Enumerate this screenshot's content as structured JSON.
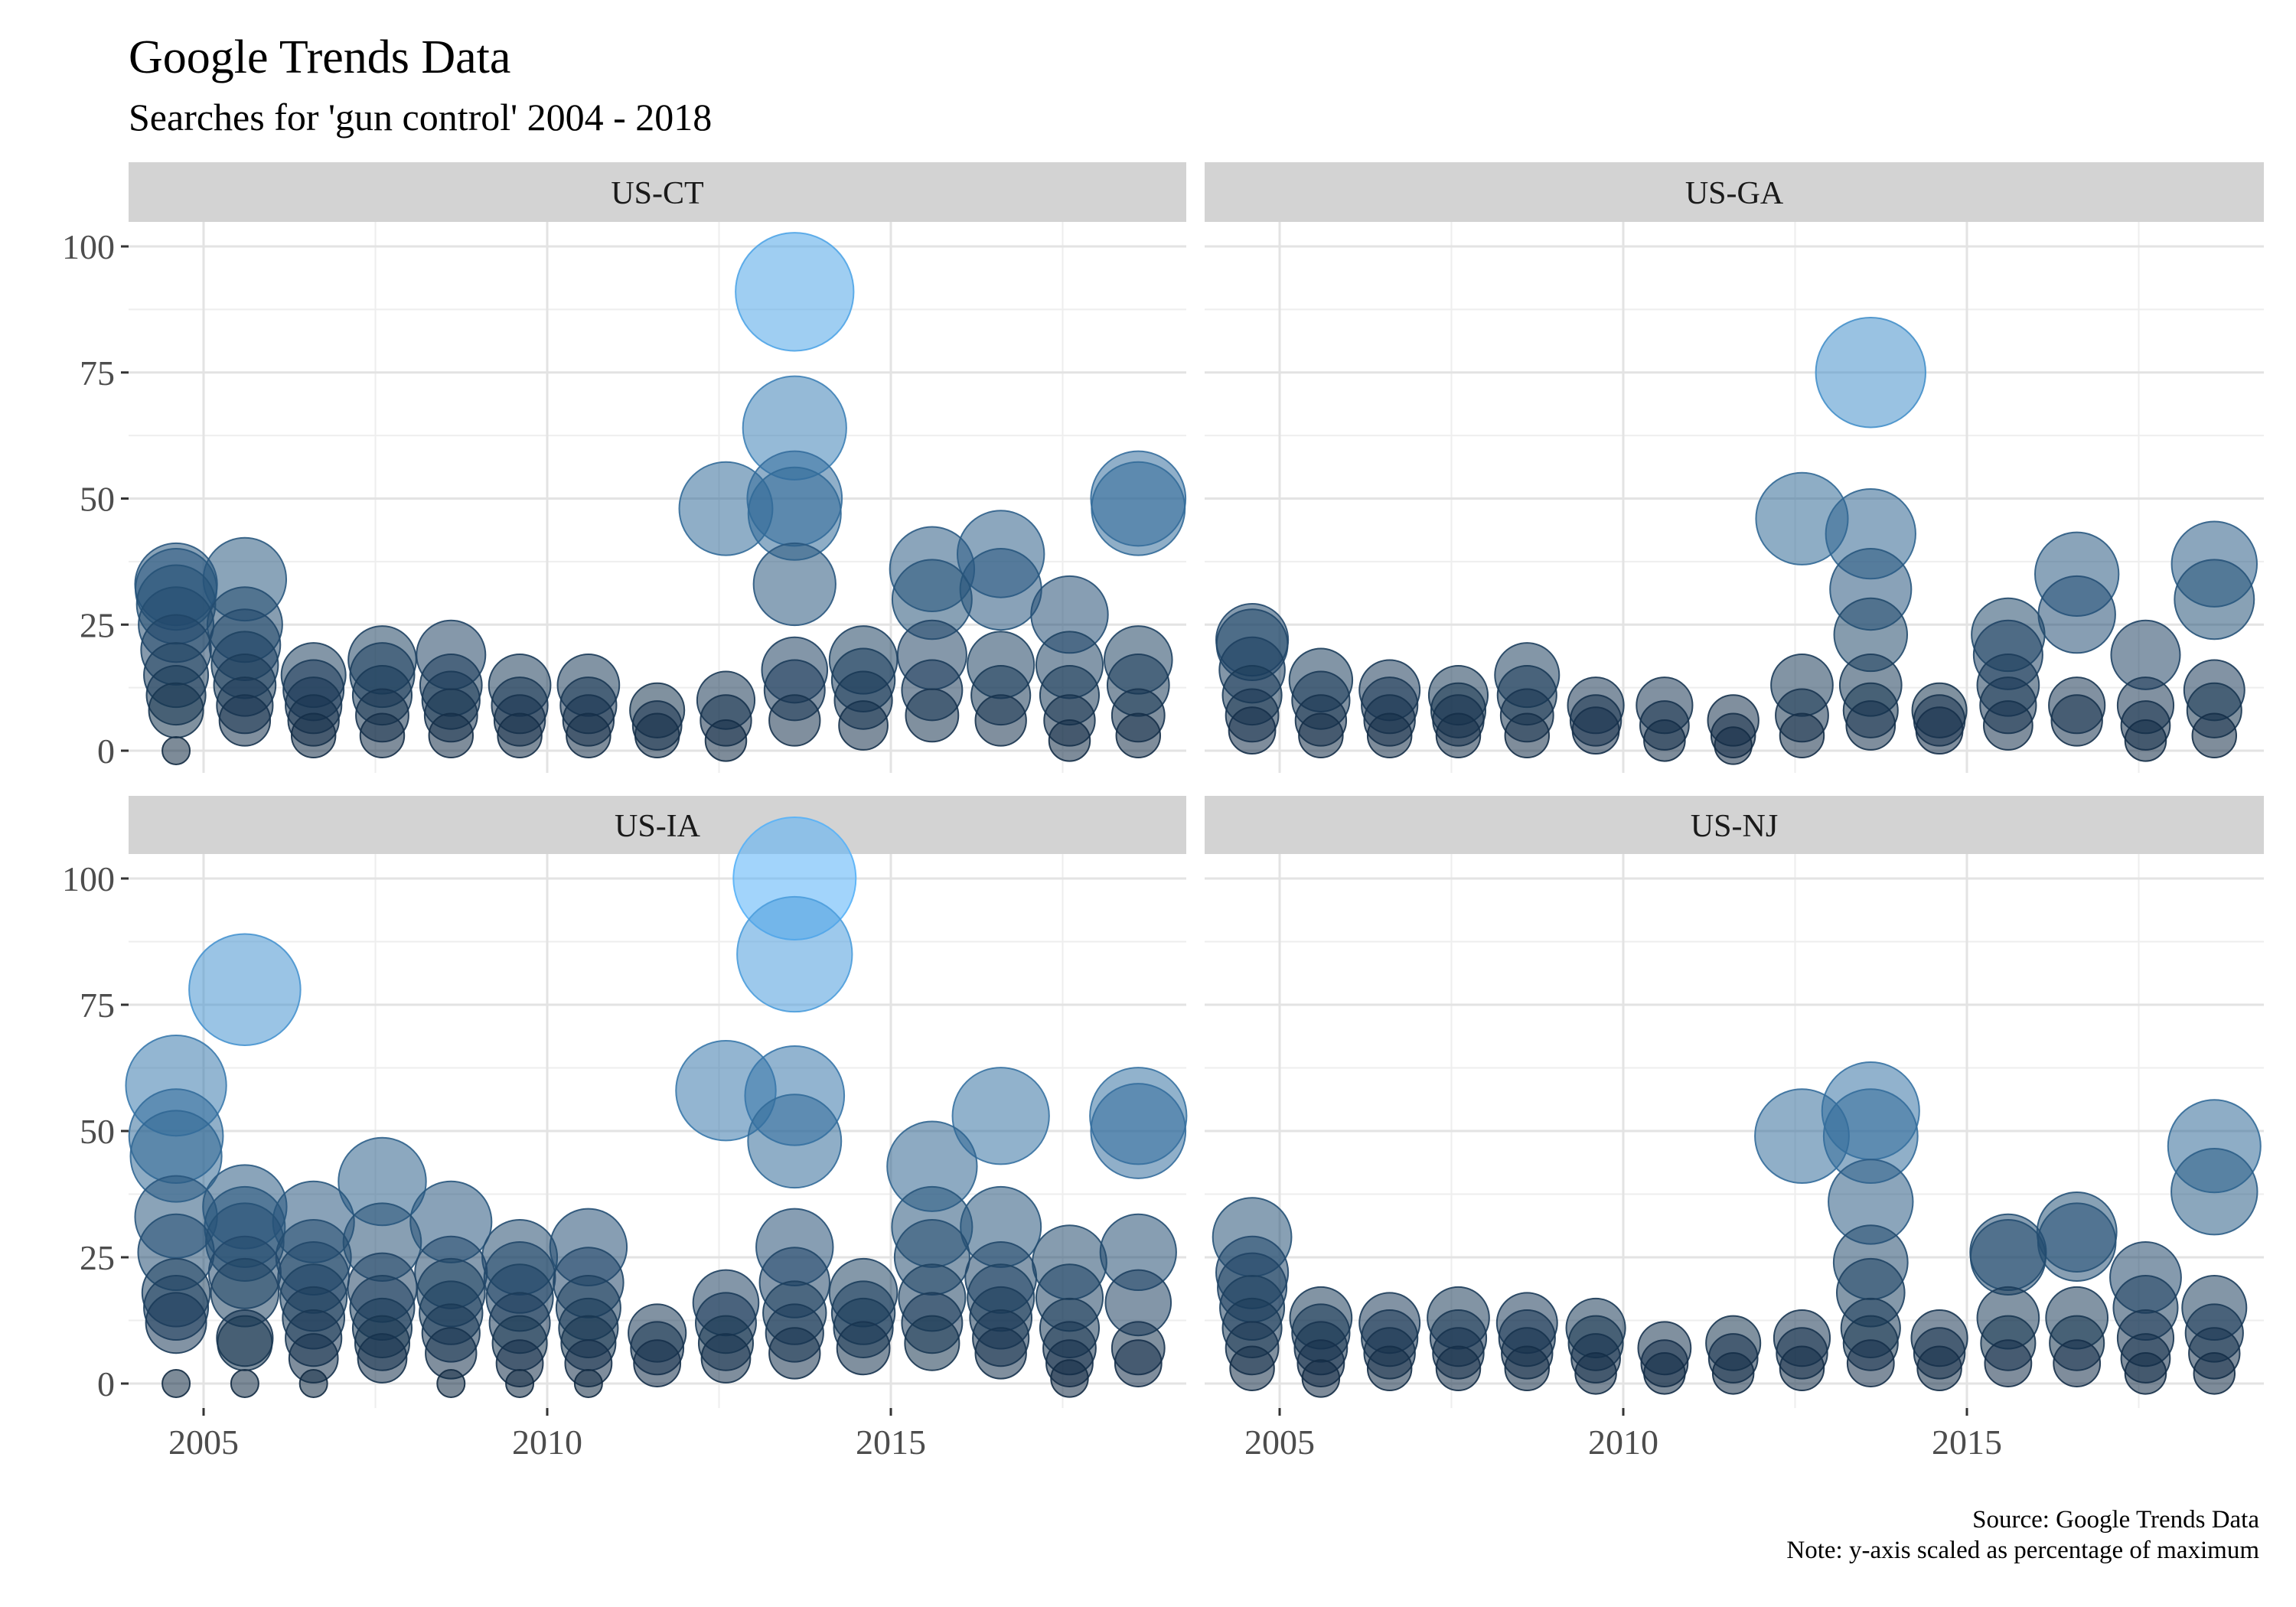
{
  "title": "Google Trends Data",
  "subtitle": "Searches for 'gun control' 2004 - 2018",
  "caption": {
    "line1": "Source: Google Trends Data",
    "line2": "Note: y-axis scaled as percentage of maximum"
  },
  "colors": {
    "low": "#132b43",
    "high": "#56b1f7",
    "strip": "#d3d3d3",
    "grid": "#e3e3e3"
  },
  "chart_data": {
    "type": "scatter",
    "x_ticks": [
      2005,
      2010,
      2015
    ],
    "y_ticks": [
      0,
      25,
      50,
      75,
      100
    ],
    "xlim": [
      2004.0,
      2019.0
    ],
    "ylim": [
      -5,
      105
    ],
    "size_and_color_encode": "y",
    "facets": [
      {
        "label": "US-CT",
        "points": [
          [
            2004.6,
            0
          ],
          [
            2004.6,
            8
          ],
          [
            2004.6,
            11
          ],
          [
            2004.6,
            15
          ],
          [
            2004.6,
            20
          ],
          [
            2004.6,
            25
          ],
          [
            2004.6,
            29
          ],
          [
            2004.6,
            32
          ],
          [
            2004.6,
            33
          ],
          [
            2005.6,
            6
          ],
          [
            2005.6,
            9
          ],
          [
            2005.6,
            13
          ],
          [
            2005.6,
            17
          ],
          [
            2005.6,
            21
          ],
          [
            2005.6,
            25
          ],
          [
            2005.6,
            34
          ],
          [
            2006.6,
            3
          ],
          [
            2006.6,
            6
          ],
          [
            2006.6,
            9
          ],
          [
            2006.6,
            12
          ],
          [
            2006.6,
            15
          ],
          [
            2007.6,
            3
          ],
          [
            2007.6,
            7
          ],
          [
            2007.6,
            11
          ],
          [
            2007.6,
            15
          ],
          [
            2007.6,
            18
          ],
          [
            2008.6,
            3
          ],
          [
            2008.6,
            7
          ],
          [
            2008.6,
            10
          ],
          [
            2008.6,
            13
          ],
          [
            2008.6,
            19
          ],
          [
            2009.6,
            3
          ],
          [
            2009.6,
            6
          ],
          [
            2009.6,
            9
          ],
          [
            2009.6,
            13
          ],
          [
            2010.6,
            3
          ],
          [
            2010.6,
            6
          ],
          [
            2010.6,
            9
          ],
          [
            2010.6,
            13
          ],
          [
            2011.6,
            3
          ],
          [
            2011.6,
            5
          ],
          [
            2011.6,
            8
          ],
          [
            2012.6,
            2
          ],
          [
            2012.6,
            6
          ],
          [
            2012.6,
            10
          ],
          [
            2012.6,
            48
          ],
          [
            2013.6,
            6
          ],
          [
            2013.6,
            12
          ],
          [
            2013.6,
            16
          ],
          [
            2013.6,
            33
          ],
          [
            2013.6,
            47
          ],
          [
            2013.6,
            50
          ],
          [
            2013.6,
            64
          ],
          [
            2013.6,
            91
          ],
          [
            2014.6,
            5
          ],
          [
            2014.6,
            10
          ],
          [
            2014.6,
            14
          ],
          [
            2014.6,
            18
          ],
          [
            2015.6,
            7
          ],
          [
            2015.6,
            12
          ],
          [
            2015.6,
            19
          ],
          [
            2015.6,
            30
          ],
          [
            2015.6,
            36
          ],
          [
            2016.6,
            6
          ],
          [
            2016.6,
            11
          ],
          [
            2016.6,
            17
          ],
          [
            2016.6,
            32
          ],
          [
            2016.6,
            39
          ],
          [
            2017.6,
            2
          ],
          [
            2017.6,
            6
          ],
          [
            2017.6,
            11
          ],
          [
            2017.6,
            17
          ],
          [
            2017.6,
            27
          ],
          [
            2018.6,
            3
          ],
          [
            2018.6,
            7
          ],
          [
            2018.6,
            13
          ],
          [
            2018.6,
            18
          ],
          [
            2018.6,
            48
          ],
          [
            2018.6,
            50
          ]
        ]
      },
      {
        "label": "US-GA",
        "points": [
          [
            2004.6,
            4
          ],
          [
            2004.6,
            7
          ],
          [
            2004.6,
            11
          ],
          [
            2004.6,
            16
          ],
          [
            2004.6,
            21
          ],
          [
            2004.6,
            22
          ],
          [
            2005.6,
            3
          ],
          [
            2005.6,
            6
          ],
          [
            2005.6,
            10
          ],
          [
            2005.6,
            14
          ],
          [
            2006.6,
            3
          ],
          [
            2006.6,
            6
          ],
          [
            2006.6,
            9
          ],
          [
            2006.6,
            12
          ],
          [
            2007.6,
            3
          ],
          [
            2007.6,
            6
          ],
          [
            2007.6,
            8
          ],
          [
            2007.6,
            11
          ],
          [
            2008.6,
            3
          ],
          [
            2008.6,
            7
          ],
          [
            2008.6,
            11
          ],
          [
            2008.6,
            15
          ],
          [
            2009.6,
            4
          ],
          [
            2009.6,
            6
          ],
          [
            2009.6,
            9
          ],
          [
            2010.6,
            2
          ],
          [
            2010.6,
            5
          ],
          [
            2010.6,
            9
          ],
          [
            2011.6,
            1
          ],
          [
            2011.6,
            3
          ],
          [
            2011.6,
            6
          ],
          [
            2012.6,
            3
          ],
          [
            2012.6,
            7
          ],
          [
            2012.6,
            13
          ],
          [
            2012.6,
            46
          ],
          [
            2013.6,
            5
          ],
          [
            2013.6,
            8
          ],
          [
            2013.6,
            13
          ],
          [
            2013.6,
            23
          ],
          [
            2013.6,
            32
          ],
          [
            2013.6,
            43
          ],
          [
            2013.6,
            75
          ],
          [
            2014.6,
            4
          ],
          [
            2014.6,
            6
          ],
          [
            2014.6,
            8
          ],
          [
            2015.6,
            5
          ],
          [
            2015.6,
            9
          ],
          [
            2015.6,
            13
          ],
          [
            2015.6,
            19
          ],
          [
            2015.6,
            23
          ],
          [
            2016.6,
            6
          ],
          [
            2016.6,
            9
          ],
          [
            2016.6,
            27
          ],
          [
            2016.6,
            35
          ],
          [
            2017.6,
            2
          ],
          [
            2017.6,
            5
          ],
          [
            2017.6,
            9
          ],
          [
            2017.6,
            19
          ],
          [
            2018.6,
            3
          ],
          [
            2018.6,
            8
          ],
          [
            2018.6,
            12
          ],
          [
            2018.6,
            30
          ],
          [
            2018.6,
            37
          ]
        ]
      },
      {
        "label": "US-IA",
        "points": [
          [
            2004.6,
            0
          ],
          [
            2004.6,
            12
          ],
          [
            2004.6,
            15
          ],
          [
            2004.6,
            18
          ],
          [
            2004.6,
            26
          ],
          [
            2004.6,
            33
          ],
          [
            2004.6,
            45
          ],
          [
            2004.6,
            49
          ],
          [
            2004.6,
            59
          ],
          [
            2005.6,
            0
          ],
          [
            2005.6,
            8
          ],
          [
            2005.6,
            9
          ],
          [
            2005.6,
            18
          ],
          [
            2005.6,
            22
          ],
          [
            2005.6,
            28
          ],
          [
            2005.6,
            31
          ],
          [
            2005.6,
            35
          ],
          [
            2005.6,
            78
          ],
          [
            2006.6,
            0
          ],
          [
            2006.6,
            5
          ],
          [
            2006.6,
            9
          ],
          [
            2006.6,
            13
          ],
          [
            2006.6,
            17
          ],
          [
            2006.6,
            21
          ],
          [
            2006.6,
            25
          ],
          [
            2006.6,
            32
          ],
          [
            2007.6,
            5
          ],
          [
            2007.6,
            8
          ],
          [
            2007.6,
            11
          ],
          [
            2007.6,
            15
          ],
          [
            2007.6,
            19
          ],
          [
            2007.6,
            28
          ],
          [
            2007.6,
            40
          ],
          [
            2008.6,
            0
          ],
          [
            2008.6,
            6
          ],
          [
            2008.6,
            10
          ],
          [
            2008.6,
            14
          ],
          [
            2008.6,
            18
          ],
          [
            2008.6,
            22
          ],
          [
            2008.6,
            32
          ],
          [
            2009.6,
            0
          ],
          [
            2009.6,
            4
          ],
          [
            2009.6,
            8
          ],
          [
            2009.6,
            12
          ],
          [
            2009.6,
            17
          ],
          [
            2009.6,
            21
          ],
          [
            2009.6,
            25
          ],
          [
            2010.6,
            0
          ],
          [
            2010.6,
            4
          ],
          [
            2010.6,
            8
          ],
          [
            2010.6,
            11
          ],
          [
            2010.6,
            15
          ],
          [
            2010.6,
            20
          ],
          [
            2010.6,
            27
          ],
          [
            2011.6,
            4
          ],
          [
            2011.6,
            7
          ],
          [
            2011.6,
            10
          ],
          [
            2012.6,
            5
          ],
          [
            2012.6,
            8
          ],
          [
            2012.6,
            12
          ],
          [
            2012.6,
            16
          ],
          [
            2012.6,
            58
          ],
          [
            2013.6,
            6
          ],
          [
            2013.6,
            10
          ],
          [
            2013.6,
            14
          ],
          [
            2013.6,
            20
          ],
          [
            2013.6,
            27
          ],
          [
            2013.6,
            48
          ],
          [
            2013.6,
            57
          ],
          [
            2013.6,
            85
          ],
          [
            2013.6,
            100
          ],
          [
            2014.6,
            7
          ],
          [
            2014.6,
            11
          ],
          [
            2014.6,
            14
          ],
          [
            2014.6,
            18
          ],
          [
            2015.6,
            8
          ],
          [
            2015.6,
            12
          ],
          [
            2015.6,
            17
          ],
          [
            2015.6,
            25
          ],
          [
            2015.6,
            31
          ],
          [
            2015.6,
            43
          ],
          [
            2016.6,
            6
          ],
          [
            2016.6,
            9
          ],
          [
            2016.6,
            13
          ],
          [
            2016.6,
            17
          ],
          [
            2016.6,
            21
          ],
          [
            2016.6,
            31
          ],
          [
            2016.6,
            53
          ],
          [
            2017.6,
            1
          ],
          [
            2017.6,
            4
          ],
          [
            2017.6,
            7
          ],
          [
            2017.6,
            11
          ],
          [
            2017.6,
            17
          ],
          [
            2017.6,
            24
          ],
          [
            2018.6,
            4
          ],
          [
            2018.6,
            7
          ],
          [
            2018.6,
            16
          ],
          [
            2018.6,
            26
          ],
          [
            2018.6,
            50
          ],
          [
            2018.6,
            53
          ]
        ]
      },
      {
        "label": "US-NJ",
        "points": [
          [
            2004.6,
            3
          ],
          [
            2004.6,
            7
          ],
          [
            2004.6,
            11
          ],
          [
            2004.6,
            15
          ],
          [
            2004.6,
            19
          ],
          [
            2004.6,
            22
          ],
          [
            2004.6,
            29
          ],
          [
            2005.6,
            1
          ],
          [
            2005.6,
            4
          ],
          [
            2005.6,
            7
          ],
          [
            2005.6,
            10
          ],
          [
            2005.6,
            13
          ],
          [
            2006.6,
            3
          ],
          [
            2006.6,
            6
          ],
          [
            2006.6,
            9
          ],
          [
            2006.6,
            12
          ],
          [
            2007.6,
            3
          ],
          [
            2007.6,
            6
          ],
          [
            2007.6,
            9
          ],
          [
            2007.6,
            13
          ],
          [
            2008.6,
            3
          ],
          [
            2008.6,
            6
          ],
          [
            2008.6,
            9
          ],
          [
            2008.6,
            12
          ],
          [
            2009.6,
            2
          ],
          [
            2009.6,
            5
          ],
          [
            2009.6,
            8
          ],
          [
            2009.6,
            11
          ],
          [
            2010.6,
            2
          ],
          [
            2010.6,
            4
          ],
          [
            2010.6,
            7
          ],
          [
            2011.6,
            2
          ],
          [
            2011.6,
            5
          ],
          [
            2011.6,
            8
          ],
          [
            2012.6,
            3
          ],
          [
            2012.6,
            6
          ],
          [
            2012.6,
            9
          ],
          [
            2012.6,
            49
          ],
          [
            2013.6,
            4
          ],
          [
            2013.6,
            8
          ],
          [
            2013.6,
            11
          ],
          [
            2013.6,
            18
          ],
          [
            2013.6,
            24
          ],
          [
            2013.6,
            36
          ],
          [
            2013.6,
            49
          ],
          [
            2013.6,
            54
          ],
          [
            2014.6,
            3
          ],
          [
            2014.6,
            6
          ],
          [
            2014.6,
            9
          ],
          [
            2015.6,
            4
          ],
          [
            2015.6,
            8
          ],
          [
            2015.6,
            13
          ],
          [
            2015.6,
            25
          ],
          [
            2015.6,
            26
          ],
          [
            2016.6,
            4
          ],
          [
            2016.6,
            8
          ],
          [
            2016.6,
            13
          ],
          [
            2016.6,
            28
          ],
          [
            2016.6,
            30
          ],
          [
            2017.6,
            2
          ],
          [
            2017.6,
            5
          ],
          [
            2017.6,
            9
          ],
          [
            2017.6,
            15
          ],
          [
            2017.6,
            21
          ],
          [
            2018.6,
            2
          ],
          [
            2018.6,
            6
          ],
          [
            2018.6,
            10
          ],
          [
            2018.6,
            15
          ],
          [
            2018.6,
            38
          ],
          [
            2018.6,
            47
          ]
        ]
      }
    ]
  }
}
